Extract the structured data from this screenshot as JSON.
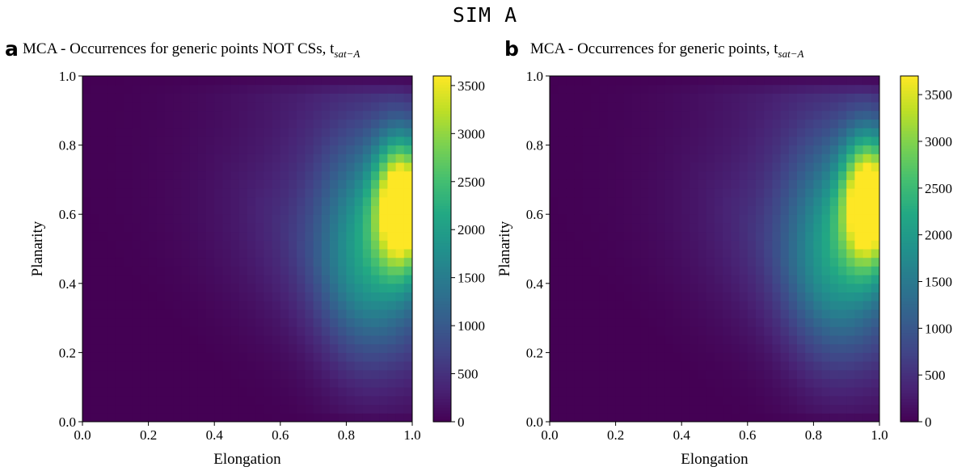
{
  "figure_title": "SIM A",
  "chart_data": [
    {
      "type": "heatmap",
      "panel_label": "a",
      "title_main": "MCA - Occurrences for generic points NOT CSs, t",
      "title_sub": "sat−A",
      "xlabel": "Elongation",
      "ylabel": "Planarity",
      "xlim": [
        0.0,
        1.0
      ],
      "ylim": [
        0.0,
        1.0
      ],
      "xticks": [
        "0.0",
        "0.2",
        "0.4",
        "0.6",
        "0.8",
        "1.0"
      ],
      "yticks": [
        "0.0",
        "0.2",
        "0.4",
        "0.6",
        "0.8",
        "1.0"
      ],
      "colorbar_range": [
        0,
        3600
      ],
      "colorbar_ticks": [
        "0",
        "500",
        "1000",
        "1500",
        "2000",
        "2500",
        "3000",
        "3500"
      ],
      "colormap": "viridis",
      "peak": {
        "elongation": 0.97,
        "planarity": 0.63,
        "count": 3600
      },
      "bins": 40
    },
    {
      "type": "heatmap",
      "panel_label": "b",
      "title_main": "MCA - Occurrences for generic points, t",
      "title_sub": "sat−A",
      "xlabel": "Elongation",
      "ylabel": "Planarity",
      "xlim": [
        0.0,
        1.0
      ],
      "ylim": [
        0.0,
        1.0
      ],
      "xticks": [
        "0.0",
        "0.2",
        "0.4",
        "0.6",
        "0.8",
        "1.0"
      ],
      "yticks": [
        "0.0",
        "0.2",
        "0.4",
        "0.6",
        "0.8",
        "1.0"
      ],
      "colorbar_range": [
        0,
        3700
      ],
      "colorbar_ticks": [
        "0",
        "500",
        "1000",
        "1500",
        "2000",
        "2500",
        "3000",
        "3500"
      ],
      "colormap": "viridis",
      "peak": {
        "elongation": 0.97,
        "planarity": 0.64,
        "count": 3700
      },
      "bins": 40
    }
  ]
}
